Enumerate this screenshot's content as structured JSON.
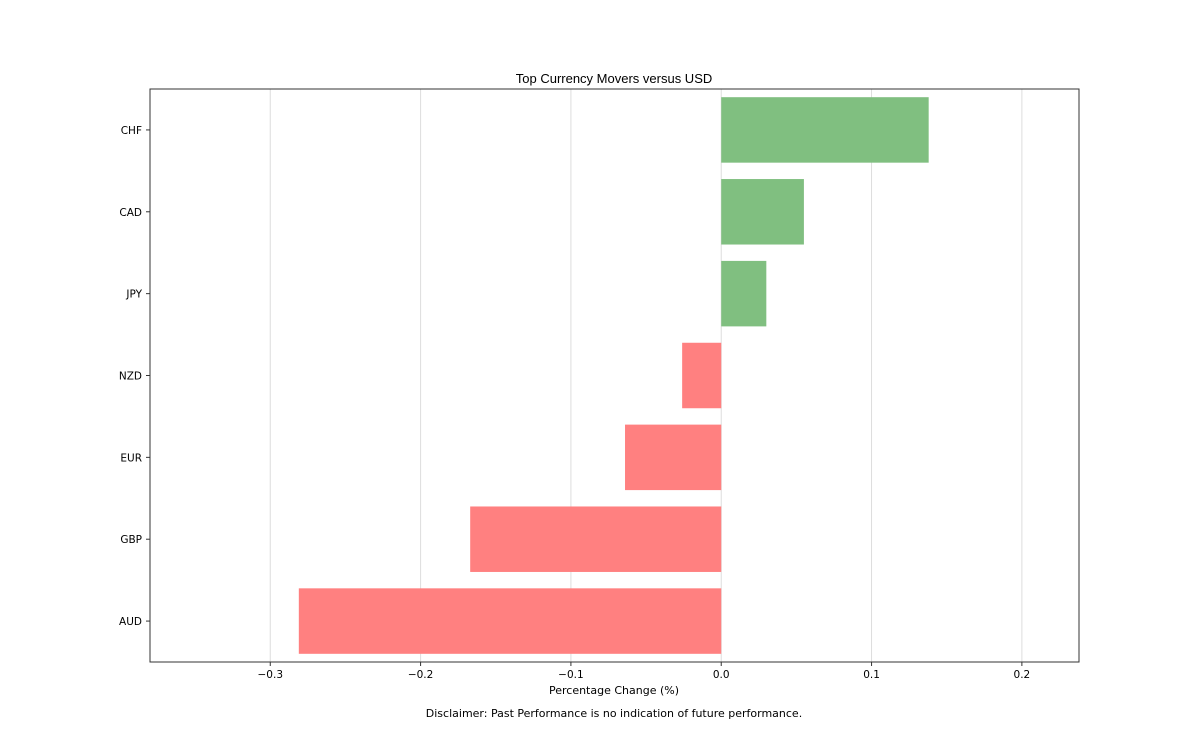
{
  "chart_data": {
    "type": "bar",
    "orientation": "horizontal",
    "title": "Top Currency Movers versus USD",
    "xlabel": "Percentage Change (%)",
    "ylabel": "",
    "categories": [
      "CHF",
      "CAD",
      "JPY",
      "NZD",
      "EUR",
      "GBP",
      "AUD"
    ],
    "values": [
      0.138,
      0.055,
      0.03,
      -0.026,
      -0.064,
      -0.167,
      -0.281
    ],
    "xlim": [
      -0.38,
      0.238
    ],
    "xticks": [
      -0.3,
      -0.2,
      -0.1,
      0.0,
      0.1,
      0.2
    ],
    "xtick_labels": [
      "−0.3",
      "−0.2",
      "−0.1",
      "0.0",
      "0.1",
      "0.2"
    ],
    "grid": "vertical",
    "colors": {
      "positive": "#80bf80",
      "negative": "#ff8080",
      "grid": "#dddddd",
      "frame": "#333333"
    },
    "legend": "none"
  },
  "footnote": "Disclaimer: Past Performance is no indication of future performance."
}
